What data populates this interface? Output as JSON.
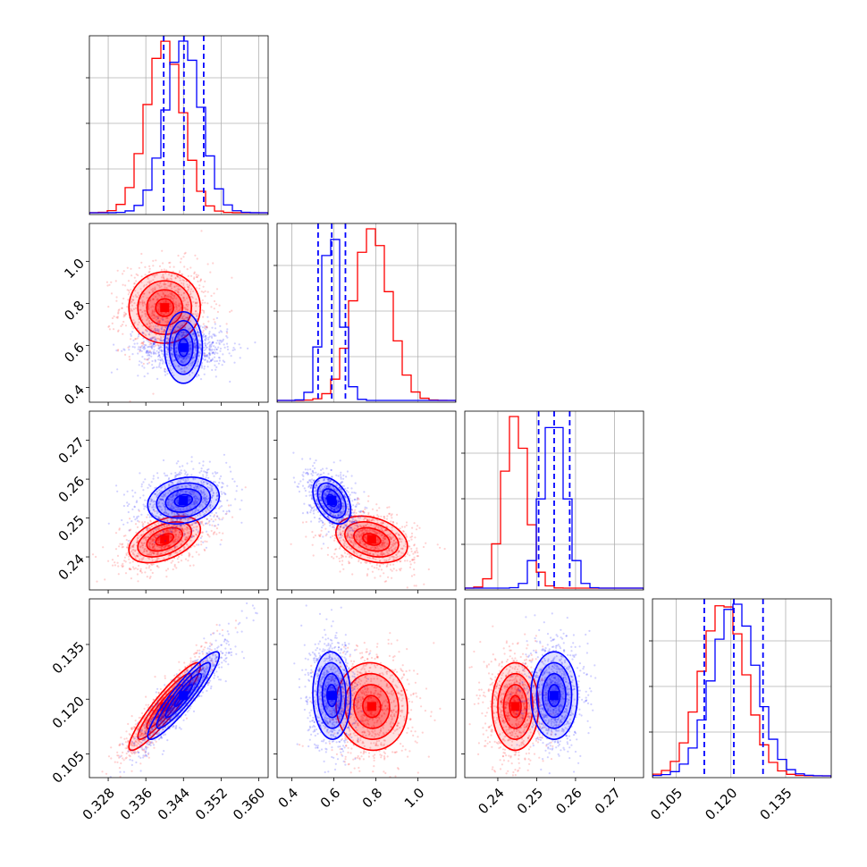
{
  "chart_data": {
    "type": "corner",
    "grid": true,
    "params": [
      {
        "range": [
          0.324,
          0.362
        ],
        "ticks": [
          0.328,
          0.336,
          0.344,
          0.352,
          0.36
        ],
        "tick_labels": [
          "0.328",
          "0.336",
          "0.344",
          "0.352",
          "0.360"
        ]
      },
      {
        "range": [
          0.33,
          1.18
        ],
        "ticks": [
          0.4,
          0.6,
          0.8,
          1.0
        ],
        "tick_labels": [
          "0.4",
          "0.6",
          "0.8",
          "1.0"
        ]
      },
      {
        "range": [
          0.2315,
          0.2775
        ],
        "ticks": [
          0.24,
          0.25,
          0.26,
          0.27
        ],
        "tick_labels": [
          "0.24",
          "0.25",
          "0.26",
          "0.27"
        ]
      },
      {
        "range": [
          0.0985,
          0.1475
        ],
        "ticks": [
          0.105,
          0.12,
          0.135
        ],
        "tick_labels": [
          "0.105",
          "0.120",
          "0.135"
        ]
      }
    ],
    "series": [
      {
        "color": "#ff0000",
        "mean": [
          0.34,
          0.78,
          0.2445,
          0.118
        ],
        "std": [
          0.0038,
          0.085,
          0.003,
          0.006
        ],
        "corr": {
          "0-1": 0.0,
          "0-2": 0.45,
          "0-3": 0.92,
          "1-2": -0.3,
          "1-3": -0.05,
          "2-3": 0.0
        }
      },
      {
        "color": "#0000ff",
        "mean": [
          0.344,
          0.59,
          0.2545,
          0.121
        ],
        "std": [
          0.0038,
          0.045,
          0.003,
          0.006
        ],
        "corr": {
          "0-1": 0.0,
          "0-2": 0.2,
          "0-3": 0.92,
          "1-2": -0.4,
          "1-3": -0.05,
          "2-3": 0.0
        }
      }
    ],
    "quantile_lines": {
      "color": "#0000ff",
      "values": [
        [
          0.3398,
          0.3441,
          0.3483
        ],
        [
          0.525,
          0.59,
          0.655
        ],
        [
          0.2505,
          0.2545,
          0.2585
        ],
        [
          0.1127,
          0.1208,
          0.1288
        ]
      ]
    },
    "contour_sigmas": [
      0.5,
      1.0,
      1.5,
      2.0
    ]
  }
}
